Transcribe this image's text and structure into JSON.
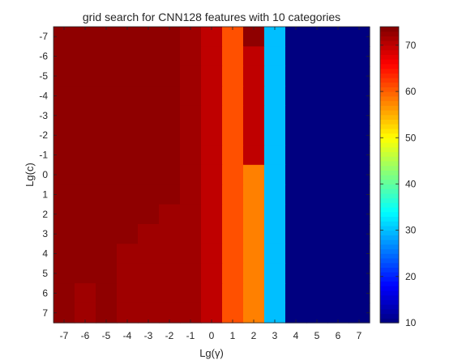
{
  "chart_data": {
    "type": "heatmap",
    "title": "grid search for CNN128 features with 10 categories",
    "xlabel": "Lg(γ)",
    "ylabel": "Lg(c)",
    "x": [
      -7,
      -6,
      -5,
      -4,
      -3,
      -2,
      -1,
      0,
      1,
      2,
      3,
      4,
      5,
      6,
      7
    ],
    "y": [
      -7,
      -6,
      -5,
      -4,
      -3,
      -2,
      -1,
      0,
      1,
      2,
      3,
      4,
      5,
      6,
      7
    ],
    "x_tick_labels": [
      "-7",
      "-6",
      "-5",
      "-4",
      "-3",
      "-2",
      "-1",
      "0",
      "1",
      "2",
      "3",
      "4",
      "5",
      "6",
      "7"
    ],
    "y_tick_labels": [
      "-7",
      "-6",
      "-5",
      "-4",
      "-3",
      "-2",
      "-1",
      "0",
      "1",
      "2",
      "3",
      "4",
      "5",
      "6",
      "7"
    ],
    "y_direction": "reversed",
    "values": [
      [
        73,
        73,
        73,
        73,
        73,
        73,
        72,
        70,
        61,
        73,
        30,
        10,
        10,
        10,
        10
      ],
      [
        73,
        73,
        73,
        73,
        73,
        73,
        72,
        70,
        61,
        70,
        30,
        10,
        10,
        10,
        10
      ],
      [
        73,
        73,
        73,
        73,
        73,
        73,
        72,
        70,
        61,
        70,
        30,
        10,
        10,
        10,
        10
      ],
      [
        73,
        73,
        73,
        73,
        73,
        73,
        72,
        70,
        61,
        70,
        30,
        10,
        10,
        10,
        10
      ],
      [
        73,
        73,
        73,
        73,
        73,
        73,
        72,
        70,
        61,
        70,
        30,
        10,
        10,
        10,
        10
      ],
      [
        73,
        73,
        73,
        73,
        73,
        73,
        72,
        70,
        61,
        70,
        30,
        10,
        10,
        10,
        10
      ],
      [
        73,
        73,
        73,
        73,
        73,
        73,
        72,
        70,
        61,
        70,
        30,
        10,
        10,
        10,
        10
      ],
      [
        73,
        73,
        73,
        73,
        73,
        73,
        72,
        70,
        61,
        58,
        30,
        10,
        10,
        10,
        10
      ],
      [
        73,
        73,
        73,
        73,
        73,
        73,
        72,
        70,
        61,
        58,
        30,
        10,
        10,
        10,
        10
      ],
      [
        73,
        73,
        73,
        73,
        73,
        72,
        72,
        70,
        61,
        58,
        30,
        10,
        10,
        10,
        10
      ],
      [
        73,
        73,
        73,
        73,
        72,
        72,
        72,
        70,
        61,
        58,
        30,
        10,
        10,
        10,
        10
      ],
      [
        73,
        73,
        73,
        72,
        72,
        72,
        72,
        70,
        61,
        58,
        30,
        10,
        10,
        10,
        10
      ],
      [
        73,
        73,
        73,
        72,
        72,
        72,
        72,
        70,
        61,
        58,
        30,
        10,
        10,
        10,
        10
      ],
      [
        73,
        72,
        73,
        72,
        72,
        72,
        72,
        70,
        61,
        58,
        30,
        10,
        10,
        10,
        10
      ],
      [
        73,
        72,
        73,
        72,
        72,
        72,
        72,
        70,
        61,
        58,
        30,
        10,
        10,
        10,
        10
      ]
    ],
    "colorbar": {
      "colormap": "jet",
      "range": [
        10,
        74
      ],
      "ticks": [
        10,
        20,
        30,
        40,
        50,
        60,
        70
      ],
      "tick_labels": [
        "10",
        "20",
        "30",
        "40",
        "50",
        "60",
        "70"
      ]
    },
    "grid": false,
    "legend": "none"
  }
}
